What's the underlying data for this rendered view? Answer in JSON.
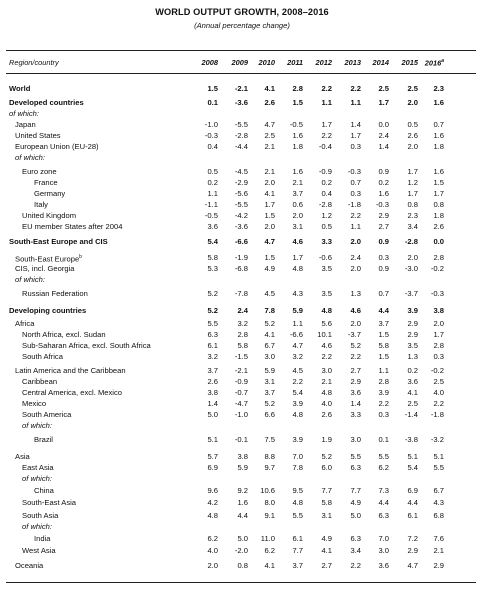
{
  "title": "WORLD OUTPUT GROWTH, 2008–2016",
  "subtitle": "(Annual percentage change)",
  "header": {
    "label": "Region/country",
    "years": [
      "2008",
      "2009",
      "2010",
      "2011",
      "2012",
      "2013",
      "2014",
      "2015",
      "2016a"
    ]
  },
  "rows": [
    {
      "label": "World",
      "indent": 0,
      "bold": true,
      "values": [
        "1.5",
        "-2.1",
        "4.1",
        "2.8",
        "2.2",
        "2.2",
        "2.5",
        "2.5",
        "2.3"
      ]
    },
    {
      "label": "Developed countries",
      "indent": 0,
      "bold": true,
      "values": [
        "0.1",
        "-3.6",
        "2.6",
        "1.5",
        "1.1",
        "1.1",
        "1.7",
        "2.0",
        "1.6"
      ]
    },
    {
      "label": "of which:",
      "indent": 0,
      "italic": true,
      "values": []
    },
    {
      "label": "Japan",
      "indent": 1,
      "values": [
        "-1.0",
        "-5.5",
        "4.7",
        "-0.5",
        "1.7",
        "1.4",
        "0.0",
        "0.5",
        "0.7"
      ]
    },
    {
      "label": "United States",
      "indent": 1,
      "values": [
        "-0.3",
        "-2.8",
        "2.5",
        "1.6",
        "2.2",
        "1.7",
        "2.4",
        "2.6",
        "1.6"
      ]
    },
    {
      "label": "European Union (EU-28)",
      "indent": 1,
      "values": [
        "0.4",
        "-4.4",
        "2.1",
        "1.8",
        "-0.4",
        "0.3",
        "1.4",
        "2.0",
        "1.8"
      ]
    },
    {
      "label": "of which:",
      "indent": 1,
      "italic": true,
      "values": []
    },
    {
      "label": "Euro zone",
      "indent": 2,
      "values": [
        "0.5",
        "-4.5",
        "2.1",
        "1.6",
        "-0.9",
        "-0.3",
        "0.9",
        "1.7",
        "1.6"
      ]
    },
    {
      "label": "France",
      "indent": 3,
      "values": [
        "0.2",
        "-2.9",
        "2.0",
        "2.1",
        "0.2",
        "0.7",
        "0.2",
        "1.2",
        "1.5"
      ]
    },
    {
      "label": "Germany",
      "indent": 3,
      "values": [
        "1.1",
        "-5.6",
        "4.1",
        "3.7",
        "0.4",
        "0.3",
        "1.6",
        "1.7",
        "1.7"
      ]
    },
    {
      "label": "Italy",
      "indent": 3,
      "values": [
        "-1.1",
        "-5.5",
        "1.7",
        "0.6",
        "-2.8",
        "-1.8",
        "-0.3",
        "0.8",
        "0.8"
      ]
    },
    {
      "label": "United Kingdom",
      "indent": 2,
      "values": [
        "-0.5",
        "-4.2",
        "1.5",
        "2.0",
        "1.2",
        "2.2",
        "2.9",
        "2.3",
        "1.8"
      ]
    },
    {
      "label": "EU member States after 2004",
      "indent": 2,
      "values": [
        "3.6",
        "-3.6",
        "2.0",
        "3.1",
        "0.5",
        "1.1",
        "2.7",
        "3.4",
        "2.6"
      ]
    },
    {
      "label": "South-East Europe and CIS",
      "indent": 0,
      "bold": true,
      "values": [
        "5.4",
        "-6.6",
        "4.7",
        "4.6",
        "3.3",
        "2.0",
        "0.9",
        "-2.8",
        "0.0"
      ]
    },
    {
      "label": "South-East Europe",
      "sup": "b",
      "indent": 1,
      "values": [
        "5.8",
        "-1.9",
        "1.5",
        "1.7",
        "-0.6",
        "2.4",
        "0.3",
        "2.0",
        "2.8"
      ]
    },
    {
      "label": "CIS, incl. Georgia",
      "indent": 1,
      "values": [
        "5.3",
        "-6.8",
        "4.9",
        "4.8",
        "3.5",
        "2.0",
        "0.9",
        "-3.0",
        "-0.2"
      ]
    },
    {
      "label": "of which:",
      "indent": 1,
      "italic": true,
      "values": []
    },
    {
      "label": "Russian Federation",
      "indent": 2,
      "values": [
        "5.2",
        "-7.8",
        "4.5",
        "4.3",
        "3.5",
        "1.3",
        "0.7",
        "-3.7",
        "-0.3"
      ]
    },
    {
      "label": "Developing countries",
      "indent": 0,
      "bold": true,
      "values": [
        "5.2",
        "2.4",
        "7.8",
        "5.9",
        "4.8",
        "4.6",
        "4.4",
        "3.9",
        "3.8"
      ]
    },
    {
      "label": "Africa",
      "indent": 1,
      "values": [
        "5.5",
        "3.2",
        "5.2",
        "1.1",
        "5.6",
        "2.0",
        "3.7",
        "2.9",
        "2.0"
      ]
    },
    {
      "label": "North Africa, excl. Sudan",
      "indent": 2,
      "values": [
        "6.3",
        "2.8",
        "4.1",
        "-6.6",
        "10.1",
        "-3.7",
        "1.5",
        "2.9",
        "1.7"
      ]
    },
    {
      "label": "Sub-Saharan Africa, excl. South Africa",
      "indent": 2,
      "values": [
        "6.1",
        "5.8",
        "6.7",
        "4.7",
        "4.6",
        "5.2",
        "5.8",
        "3.5",
        "2.8"
      ]
    },
    {
      "label": "South Africa",
      "indent": 2,
      "values": [
        "3.2",
        "-1.5",
        "3.0",
        "3.2",
        "2.2",
        "2.2",
        "1.5",
        "1.3",
        "0.3"
      ]
    },
    {
      "label": "Latin America and the Caribbean",
      "indent": 1,
      "values": [
        "3.7",
        "-2.1",
        "5.9",
        "4.5",
        "3.0",
        "2.7",
        "1.1",
        "0.2",
        "-0.2"
      ]
    },
    {
      "label": "Caribbean",
      "indent": 2,
      "values": [
        "2.6",
        "-0.9",
        "3.1",
        "2.2",
        "2.1",
        "2.9",
        "2.8",
        "3.6",
        "2.5"
      ]
    },
    {
      "label": "Central America, excl. Mexico",
      "indent": 2,
      "values": [
        "3.8",
        "-0.7",
        "3.7",
        "5.4",
        "4.8",
        "3.6",
        "3.9",
        "4.1",
        "4.0"
      ]
    },
    {
      "label": "Mexico",
      "indent": 2,
      "values": [
        "1.4",
        "-4.7",
        "5.2",
        "3.9",
        "4.0",
        "1.4",
        "2.2",
        "2.5",
        "2.2"
      ]
    },
    {
      "label": "South America",
      "indent": 2,
      "values": [
        "5.0",
        "-1.0",
        "6.6",
        "4.8",
        "2.6",
        "3.3",
        "0.3",
        "-1.4",
        "-1.8"
      ]
    },
    {
      "label": "of which:",
      "indent": 2,
      "italic": true,
      "values": []
    },
    {
      "label": "Brazil",
      "indent": 3,
      "values": [
        "5.1",
        "-0.1",
        "7.5",
        "3.9",
        "1.9",
        "3.0",
        "0.1",
        "-3.8",
        "-3.2"
      ]
    },
    {
      "label": "Asia",
      "indent": 1,
      "values": [
        "5.7",
        "3.8",
        "8.8",
        "7.0",
        "5.2",
        "5.5",
        "5.5",
        "5.1",
        "5.1"
      ]
    },
    {
      "label": "East Asia",
      "indent": 2,
      "values": [
        "6.9",
        "5.9",
        "9.7",
        "7.8",
        "6.0",
        "6.3",
        "6.2",
        "5.4",
        "5.5"
      ]
    },
    {
      "label": "of which:",
      "indent": 2,
      "italic": true,
      "values": []
    },
    {
      "label": "China",
      "indent": 3,
      "values": [
        "9.6",
        "9.2",
        "10.6",
        "9.5",
        "7.7",
        "7.7",
        "7.3",
        "6.9",
        "6.7"
      ]
    },
    {
      "label": "South-East Asia",
      "indent": 2,
      "values": [
        "4.2",
        "1.6",
        "8.0",
        "4.8",
        "5.8",
        "4.9",
        "4.4",
        "4.4",
        "4.3"
      ]
    },
    {
      "label": "South Asia",
      "indent": 2,
      "values": [
        "4.8",
        "4.4",
        "9.1",
        "5.5",
        "3.1",
        "5.0",
        "6.3",
        "6.1",
        "6.8"
      ]
    },
    {
      "label": "of which:",
      "indent": 2,
      "italic": true,
      "values": []
    },
    {
      "label": "India",
      "indent": 3,
      "values": [
        "6.2",
        "5.0",
        "11.0",
        "6.1",
        "4.9",
        "6.3",
        "7.0",
        "7.2",
        "7.6"
      ]
    },
    {
      "label": "West Asia",
      "indent": 2,
      "values": [
        "4.0",
        "-2.0",
        "6.2",
        "7.7",
        "4.1",
        "3.4",
        "3.0",
        "2.9",
        "2.1"
      ]
    },
    {
      "label": "Oceania",
      "indent": 1,
      "values": [
        "2.0",
        "0.8",
        "4.1",
        "3.7",
        "2.7",
        "2.2",
        "3.6",
        "4.7",
        "2.9"
      ]
    }
  ]
}
